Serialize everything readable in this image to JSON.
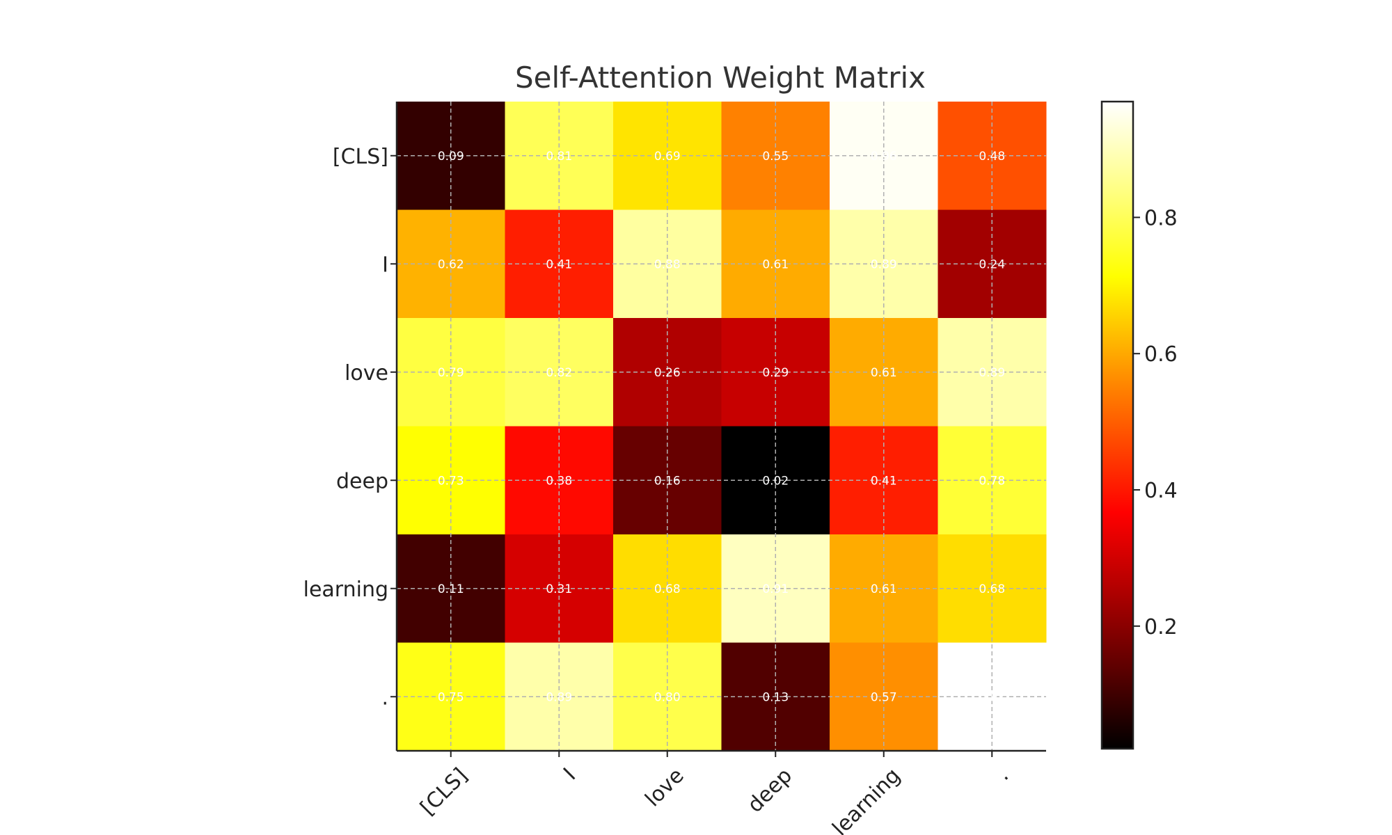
{
  "chart_data": {
    "type": "heatmap",
    "title": "Self-Attention Weight Matrix",
    "x_labels": [
      "[CLS]",
      "I",
      "love",
      "deep",
      "learning",
      "."
    ],
    "y_labels": [
      "[CLS]",
      "I",
      "love",
      "deep",
      "learning",
      "."
    ],
    "values": [
      [
        0.09,
        0.81,
        0.69,
        0.55,
        0.96,
        0.48
      ],
      [
        0.62,
        0.41,
        0.88,
        0.61,
        0.89,
        0.24
      ],
      [
        0.79,
        0.82,
        0.26,
        0.29,
        0.61,
        0.89
      ],
      [
        0.73,
        0.38,
        0.16,
        0.02,
        0.41,
        0.78
      ],
      [
        0.11,
        0.31,
        0.68,
        0.91,
        0.61,
        0.68
      ],
      [
        0.75,
        0.89,
        0.8,
        0.13,
        0.57,
        0.97
      ]
    ],
    "colormap": "hot",
    "colorbar": {
      "min": 0.02,
      "max": 0.97,
      "ticks": [
        0.2,
        0.4,
        0.6,
        0.8
      ]
    },
    "grid": true,
    "x_tick_rotation": "45deg"
  }
}
